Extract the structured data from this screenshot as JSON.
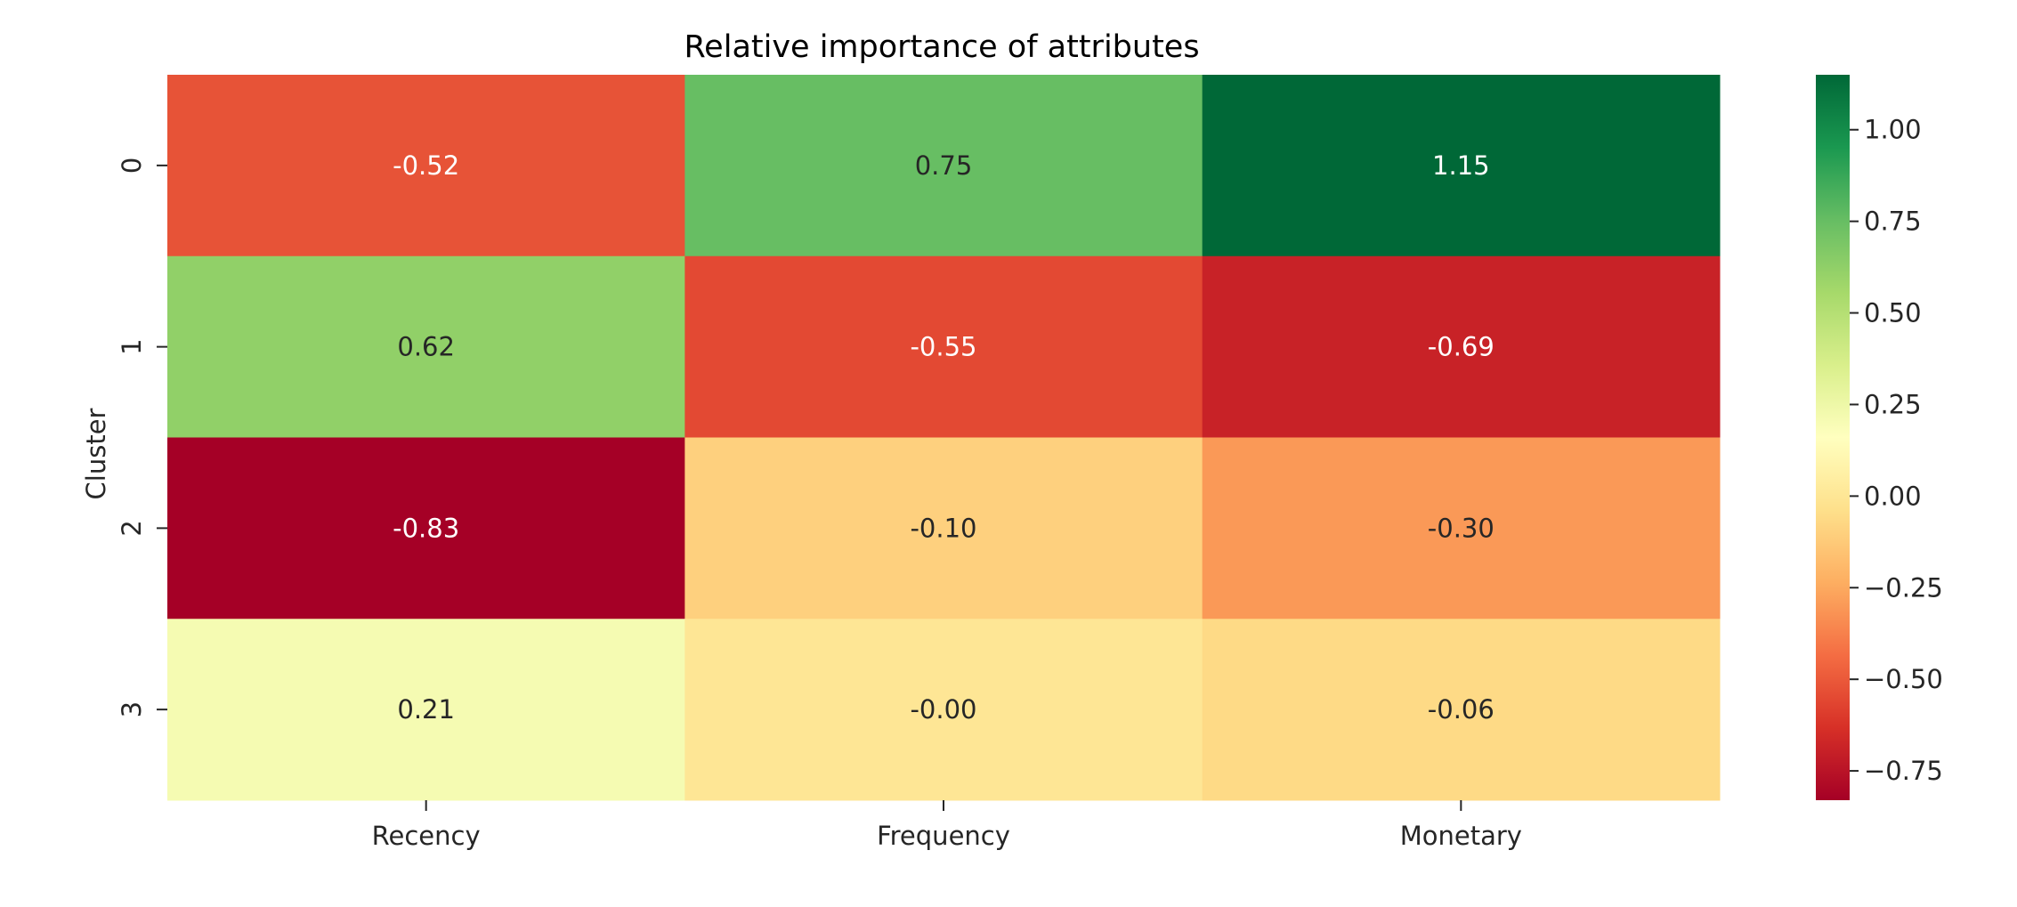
{
  "chart_data": {
    "type": "heatmap",
    "title": "Relative importance of attributes",
    "xlabel": "",
    "ylabel": "Cluster",
    "x_categories": [
      "Recency",
      "Frequency",
      "Monetary"
    ],
    "y_categories": [
      "0",
      "1",
      "2",
      "3"
    ],
    "values": [
      [
        -0.52,
        0.75,
        1.15
      ],
      [
        0.62,
        -0.55,
        -0.69
      ],
      [
        -0.83,
        -0.1,
        -0.3
      ],
      [
        0.21,
        -0.0,
        -0.06
      ]
    ],
    "annotations": [
      [
        "-0.52",
        "0.75",
        "1.15"
      ],
      [
        "0.62",
        "-0.55",
        "-0.69"
      ],
      [
        "-0.83",
        "-0.10",
        "-0.30"
      ],
      [
        "0.21",
        "-0.00",
        "-0.06"
      ]
    ],
    "colormap": "RdYlGn",
    "vmin": -0.83,
    "vmax": 1.15,
    "colorbar_ticks": [
      1.0,
      0.75,
      0.5,
      0.25,
      0.0,
      -0.25,
      -0.5,
      -0.75
    ],
    "colorbar_tick_labels": [
      "1.00",
      "0.75",
      "0.50",
      "0.25",
      "0.00",
      "−0.25",
      "−0.50",
      "−0.75"
    ],
    "legend_position": "right"
  }
}
